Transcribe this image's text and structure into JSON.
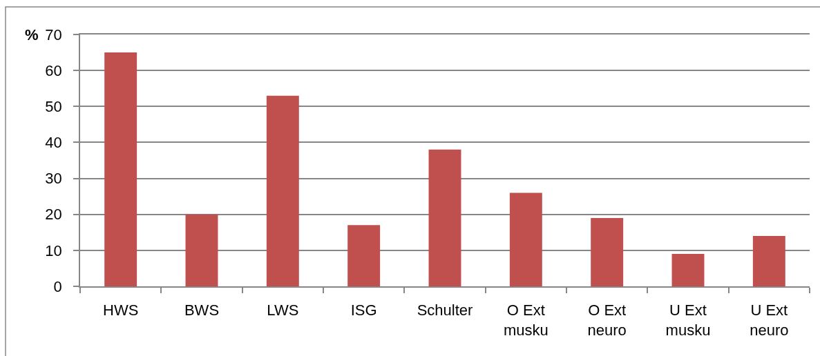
{
  "chart_data": {
    "type": "bar",
    "ylabel": "%",
    "categories": [
      "HWS",
      "BWS",
      "LWS",
      "ISG",
      "Schulter",
      "O Ext musku",
      "O Ext neuro",
      "U Ext musku",
      "U Ext neuro"
    ],
    "values": [
      65,
      20,
      53,
      17,
      38,
      26,
      19,
      9,
      14
    ],
    "color": "#c0504d",
    "ylim": [
      0,
      70
    ],
    "yticks": [
      0,
      10,
      20,
      30,
      40,
      50,
      60,
      70
    ],
    "grid": "y"
  }
}
